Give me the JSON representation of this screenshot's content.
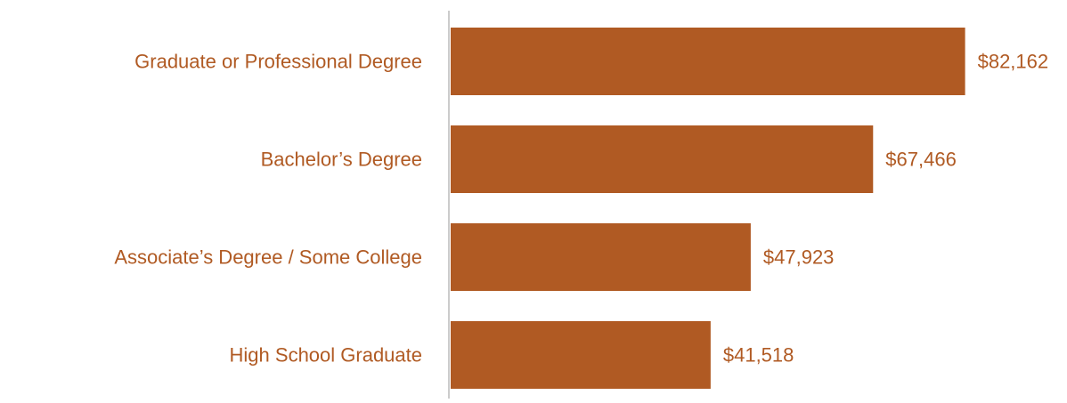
{
  "colors": {
    "bar": "#b05a23",
    "label": "#b05a23",
    "axis": "#cccccc",
    "background": "#ffffff"
  },
  "chart_data": {
    "type": "bar",
    "orientation": "horizontal",
    "categories": [
      "Graduate or Professional Degree",
      "Bachelor’s Degree",
      "Associate’s Degree / Some College",
      "High School Graduate"
    ],
    "values": [
      82162,
      67466,
      47923,
      41518
    ],
    "value_labels": [
      "$82,162",
      "$67,466",
      "$47,923",
      "$41,518"
    ],
    "xlim": [
      0,
      84000
    ],
    "grid": false,
    "legend": "none"
  }
}
